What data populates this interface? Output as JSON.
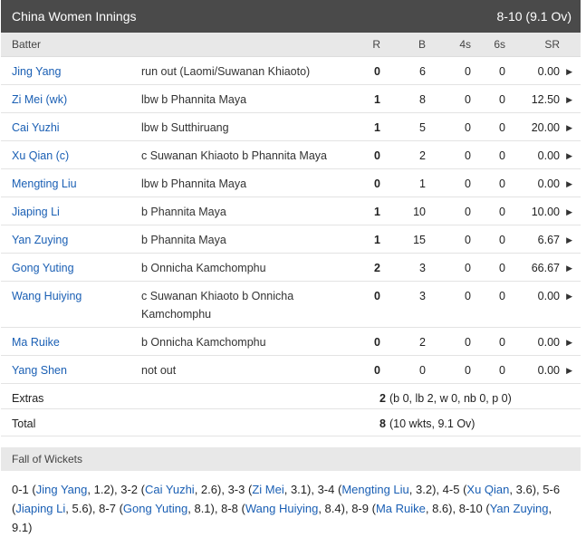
{
  "header": {
    "title": "China Women Innings",
    "score": "8-10 (9.1 Ov)"
  },
  "columns": {
    "batter": "Batter",
    "r": "R",
    "b": "B",
    "fours": "4s",
    "sixes": "6s",
    "sr": "SR"
  },
  "batters": [
    {
      "name": "Jing Yang",
      "dismissal": "run out (Laomi/Suwanan Khiaoto)",
      "r": "0",
      "b": "6",
      "fours": "0",
      "sixes": "0",
      "sr": "0.00"
    },
    {
      "name": "Zi Mei (wk)",
      "dismissal": "lbw b Phannita Maya",
      "r": "1",
      "b": "8",
      "fours": "0",
      "sixes": "0",
      "sr": "12.50"
    },
    {
      "name": "Cai Yuzhi",
      "dismissal": "lbw b Sutthiruang",
      "r": "1",
      "b": "5",
      "fours": "0",
      "sixes": "0",
      "sr": "20.00"
    },
    {
      "name": "Xu Qian (c)",
      "dismissal": "c Suwanan Khiaoto b Phannita Maya",
      "r": "0",
      "b": "2",
      "fours": "0",
      "sixes": "0",
      "sr": "0.00"
    },
    {
      "name": "Mengting Liu",
      "dismissal": "lbw b Phannita Maya",
      "r": "0",
      "b": "1",
      "fours": "0",
      "sixes": "0",
      "sr": "0.00"
    },
    {
      "name": "Jiaping Li",
      "dismissal": "b Phannita Maya",
      "r": "1",
      "b": "10",
      "fours": "0",
      "sixes": "0",
      "sr": "10.00"
    },
    {
      "name": "Yan Zuying",
      "dismissal": "b Phannita Maya",
      "r": "1",
      "b": "15",
      "fours": "0",
      "sixes": "0",
      "sr": "6.67"
    },
    {
      "name": "Gong Yuting",
      "dismissal": "b Onnicha Kamchomphu",
      "r": "2",
      "b": "3",
      "fours": "0",
      "sixes": "0",
      "sr": "66.67"
    },
    {
      "name": "Wang Huiying",
      "dismissal": "c Suwanan Khiaoto b Onnicha Kamchomphu",
      "r": "0",
      "b": "3",
      "fours": "0",
      "sixes": "0",
      "sr": "0.00"
    },
    {
      "name": "Ma Ruike",
      "dismissal": "b Onnicha Kamchomphu",
      "r": "0",
      "b": "2",
      "fours": "0",
      "sixes": "0",
      "sr": "0.00"
    },
    {
      "name": "Yang Shen",
      "dismissal": "not out",
      "r": "0",
      "b": "0",
      "fours": "0",
      "sixes": "0",
      "sr": "0.00"
    }
  ],
  "extras": {
    "label": "Extras",
    "value": "2",
    "detail": "(b 0, lb 2, w 0, nb 0, p 0)"
  },
  "total": {
    "label": "Total",
    "value": "8",
    "detail": "(10 wkts, 9.1 Ov)"
  },
  "fow": {
    "title": "Fall of Wickets",
    "items": [
      {
        "score": "0-1",
        "name": "Jing Yang",
        "over": "1.2"
      },
      {
        "score": "3-2",
        "name": "Cai Yuzhi",
        "over": "2.6"
      },
      {
        "score": "3-3",
        "name": "Zi Mei",
        "over": "3.1"
      },
      {
        "score": "3-4",
        "name": "Mengting Liu",
        "over": "3.2"
      },
      {
        "score": "4-5",
        "name": "Xu Qian",
        "over": "3.6"
      },
      {
        "score": "5-6",
        "name": "Jiaping Li",
        "over": "5.6"
      },
      {
        "score": "8-7",
        "name": "Gong Yuting",
        "over": "8.1"
      },
      {
        "score": "8-8",
        "name": "Wang Huiying",
        "over": "8.4"
      },
      {
        "score": "8-9",
        "name": "Ma Ruike",
        "over": "8.6"
      },
      {
        "score": "8-10",
        "name": "Yan Zuying",
        "over": "9.1"
      }
    ]
  }
}
